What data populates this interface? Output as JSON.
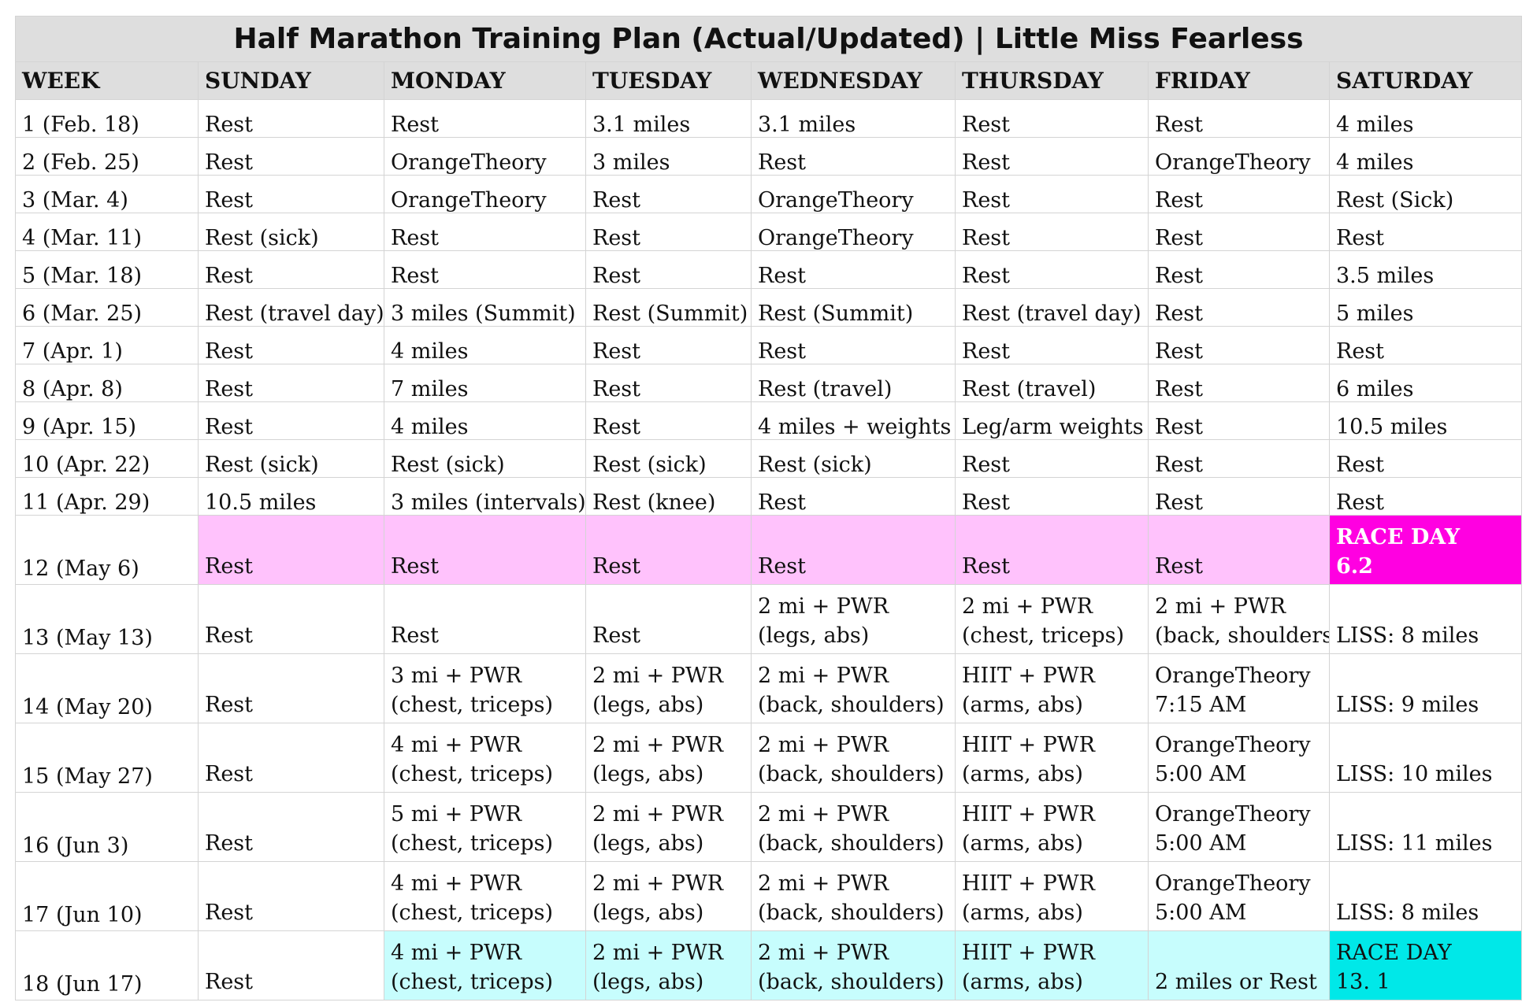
{
  "title": "Half Marathon Training Plan (Actual/Updated) | Little Miss Fearless",
  "headers": [
    "WEEK",
    "SUNDAY",
    "MONDAY",
    "TUESDAY",
    "WEDNESDAY",
    "THURSDAY",
    "FRIDAY",
    "SATURDAY"
  ],
  "colors": {
    "header_bg": "#dedede",
    "week12_bg": "#ffc2fc",
    "race_day_12_bg": "#ff00e1",
    "week18_bg": "#c7fdfd",
    "race_day_18_bg": "#00e8e8"
  },
  "rows": [
    {
      "week": "1 (Feb. 18)",
      "days": [
        "Rest",
        "Rest",
        "3.1 miles",
        "3.1 miles",
        "Rest",
        "Rest",
        "4 miles"
      ]
    },
    {
      "week": "2 (Feb. 25)",
      "days": [
        "Rest",
        "OrangeTheory",
        "3 miles",
        "Rest",
        "Rest",
        "OrangeTheory",
        "4 miles"
      ]
    },
    {
      "week": "3 (Mar. 4)",
      "days": [
        "Rest",
        "OrangeTheory",
        "Rest",
        "OrangeTheory",
        "Rest",
        "Rest",
        "Rest (Sick)"
      ]
    },
    {
      "week": "4 (Mar. 11)",
      "days": [
        "Rest (sick)",
        "Rest",
        "Rest",
        "OrangeTheory",
        "Rest",
        "Rest",
        "Rest"
      ]
    },
    {
      "week": "5 (Mar. 18)",
      "days": [
        "Rest",
        "Rest",
        "Rest",
        "Rest",
        "Rest",
        "Rest",
        "3.5 miles"
      ]
    },
    {
      "week": "6 (Mar. 25)",
      "days": [
        "Rest (travel day)",
        "3 miles (Summit)",
        "Rest (Summit)",
        "Rest (Summit)",
        "Rest (travel day)",
        "Rest",
        "5 miles"
      ]
    },
    {
      "week": "7 (Apr. 1)",
      "days": [
        "Rest",
        "4 miles",
        "Rest",
        "Rest",
        "Rest",
        "Rest",
        "Rest"
      ]
    },
    {
      "week": "8 (Apr. 8)",
      "days": [
        "Rest",
        "7 miles",
        "Rest",
        "Rest (travel)",
        "Rest (travel)",
        "Rest",
        "6 miles"
      ]
    },
    {
      "week": "9 (Apr. 15)",
      "days": [
        "Rest",
        "4 miles",
        "Rest",
        "4 miles + weights",
        "Leg/arm weights (",
        "Rest",
        "10.5 miles"
      ]
    },
    {
      "week": "10 (Apr. 22)",
      "days": [
        "Rest (sick)",
        "Rest (sick)",
        "Rest (sick)",
        "Rest (sick)",
        "Rest",
        "Rest",
        "Rest"
      ]
    },
    {
      "week": "11 (Apr. 29)",
      "days": [
        "10.5 miles",
        "3 miles (intervals)",
        "Rest (knee)",
        "Rest",
        "Rest",
        "Rest",
        "Rest"
      ]
    }
  ],
  "tall_rows": [
    {
      "week": "12 (May 6)",
      "days": [
        [
          "Rest"
        ],
        [
          "Rest"
        ],
        [
          "Rest"
        ],
        [
          "Rest"
        ],
        [
          "Rest"
        ],
        [
          "Rest"
        ],
        [
          "RACE DAY",
          "6.2"
        ]
      ]
    },
    {
      "week": "13 (May 13)",
      "days": [
        [
          "Rest"
        ],
        [
          "Rest"
        ],
        [
          "Rest"
        ],
        [
          "2 mi + PWR",
          "(legs, abs)"
        ],
        [
          "2 mi + PWR",
          "(chest, triceps)"
        ],
        [
          "2 mi + PWR",
          "(back, shoulders)"
        ],
        [
          "LISS: 8 miles"
        ]
      ]
    },
    {
      "week": "14 (May 20)",
      "days": [
        [
          "Rest"
        ],
        [
          "3 mi + PWR",
          "(chest, triceps)"
        ],
        [
          "2 mi + PWR",
          "(legs, abs)"
        ],
        [
          "2 mi + PWR",
          "(back, shoulders)"
        ],
        [
          "HIIT + PWR",
          "(arms, abs)"
        ],
        [
          "OrangeTheory",
          "7:15 AM"
        ],
        [
          "LISS: 9 miles"
        ]
      ]
    },
    {
      "week": "15 (May 27)",
      "days": [
        [
          "Rest"
        ],
        [
          "4 mi + PWR",
          "(chest, triceps)"
        ],
        [
          "2 mi + PWR",
          "(legs, abs)"
        ],
        [
          "2 mi + PWR",
          "(back, shoulders)"
        ],
        [
          "HIIT + PWR",
          "(arms, abs)"
        ],
        [
          "OrangeTheory",
          "5:00 AM"
        ],
        [
          "LISS: 10 miles"
        ]
      ]
    },
    {
      "week": "16 (Jun 3)",
      "days": [
        [
          "Rest"
        ],
        [
          "5 mi + PWR",
          "(chest, triceps)"
        ],
        [
          "2 mi + PWR",
          "(legs, abs)"
        ],
        [
          "2 mi + PWR",
          "(back, shoulders)"
        ],
        [
          "HIIT + PWR",
          "(arms, abs)"
        ],
        [
          "OrangeTheory",
          "5:00 AM"
        ],
        [
          "LISS: 11 miles"
        ]
      ]
    },
    {
      "week": "17 (Jun 10)",
      "days": [
        [
          "Rest"
        ],
        [
          "4 mi + PWR",
          "(chest, triceps)"
        ],
        [
          "2 mi + PWR",
          "(legs, abs)"
        ],
        [
          "2 mi + PWR",
          "(back, shoulders)"
        ],
        [
          "HIIT + PWR",
          "(arms, abs)"
        ],
        [
          "OrangeTheory",
          "5:00 AM"
        ],
        [
          "LISS: 8 miles"
        ]
      ]
    },
    {
      "week": "18 (Jun 17)",
      "days": [
        [
          "Rest"
        ],
        [
          "4 mi + PWR",
          "(chest, triceps)"
        ],
        [
          "2 mi + PWR",
          "(legs, abs)"
        ],
        [
          "2 mi + PWR",
          "(back, shoulders)"
        ],
        [
          "HIIT + PWR",
          "(arms, abs)"
        ],
        [
          "2 miles or Rest"
        ],
        [
          "RACE DAY",
          "13. 1"
        ]
      ]
    }
  ]
}
